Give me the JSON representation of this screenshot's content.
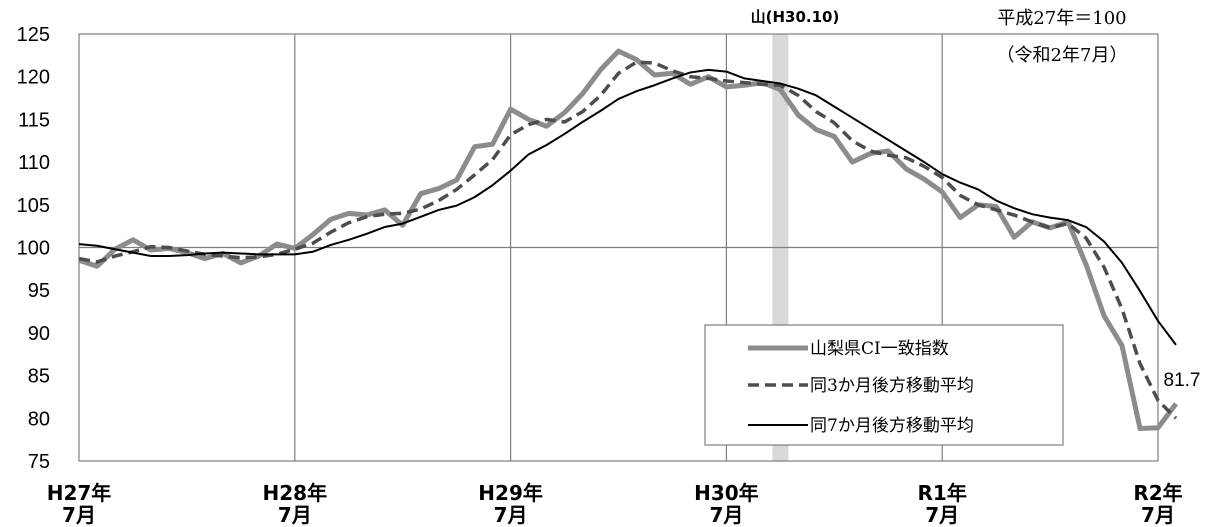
{
  "chart_data": {
    "type": "line",
    "title": "",
    "xlabel": "",
    "ylabel": "",
    "ylim": [
      75,
      125
    ],
    "yticks": [
      75,
      80,
      85,
      90,
      95,
      100,
      105,
      110,
      115,
      120,
      125
    ],
    "xticks": [
      {
        "month": 0,
        "line1": "H27年",
        "line2": "7月"
      },
      {
        "month": 12,
        "line1": "H28年",
        "line2": "7月"
      },
      {
        "month": 24,
        "line1": "H29年",
        "line2": "7月"
      },
      {
        "month": 36,
        "line1": "H30年",
        "line2": "7月"
      },
      {
        "month": 48,
        "line1": "R1年",
        "line2": "7月"
      },
      {
        "month": 60,
        "line1": "R2年",
        "line2": "7月"
      }
    ],
    "x_range": [
      0,
      60
    ],
    "grid": true,
    "peak_month": 39,
    "peak_label": "山(H30.10)",
    "base_note": "平成27年＝100",
    "date_note": "（令和2年7月）",
    "last_value_label": "81.7",
    "legend_position": "bottom-right",
    "series": [
      {
        "name": "山梨県CI一致指数",
        "color": "#8c8c8c",
        "style": "solid-thick",
        "values": [
          98.5,
          97.8,
          99.8,
          100.9,
          99.7,
          99.9,
          99.4,
          98.7,
          99.3,
          98.2,
          99.0,
          100.4,
          99.9,
          101.5,
          103.3,
          104.0,
          103.8,
          104.4,
          102.6,
          106.3,
          106.9,
          107.9,
          111.8,
          112.1,
          116.2,
          115.0,
          114.2,
          115.8,
          118.0,
          120.8,
          123.0,
          122.0,
          120.2,
          120.4,
          119.1,
          120.0,
          118.8,
          119.0,
          119.3,
          118.5,
          115.5,
          113.8,
          113.0,
          110.0,
          111.0,
          111.3,
          109.2,
          108.0,
          106.5,
          103.5,
          105.0,
          104.8,
          101.2,
          103.0,
          102.3,
          103.0,
          98.0,
          92.0,
          88.5,
          78.8,
          78.9,
          81.7
        ]
      },
      {
        "name": "同3か月後方移動平均",
        "color": "#4d4d4d",
        "style": "dashed",
        "values": [
          98.7,
          98.3,
          99.0,
          99.5,
          100.1,
          100.0,
          99.6,
          99.2,
          99.0,
          98.8,
          98.9,
          99.2,
          99.8,
          100.5,
          101.8,
          102.9,
          103.6,
          103.9,
          104.0,
          104.5,
          105.5,
          106.8,
          108.5,
          110.3,
          113.2,
          114.4,
          115.0,
          114.7,
          115.9,
          117.8,
          120.4,
          121.7,
          121.6,
          120.7,
          120.0,
          119.8,
          119.5,
          119.3,
          119.1,
          119.0,
          117.8,
          115.9,
          114.6,
          112.5,
          111.3,
          110.8,
          110.5,
          109.5,
          108.2,
          106.1,
          105.0,
          104.4,
          103.8,
          103.0,
          102.3,
          102.8,
          101.1,
          97.7,
          92.8,
          86.4,
          82.1,
          80.0
        ]
      },
      {
        "name": "同7か月後方移動平均",
        "color": "#000000",
        "style": "solid-thin",
        "values": [
          100.4,
          100.2,
          99.8,
          99.4,
          99.0,
          99.0,
          99.1,
          99.3,
          99.4,
          99.3,
          99.2,
          99.2,
          99.2,
          99.5,
          100.3,
          100.9,
          101.6,
          102.4,
          102.8,
          103.6,
          104.4,
          104.9,
          105.9,
          107.3,
          109.0,
          110.9,
          112.0,
          113.3,
          114.7,
          116.0,
          117.4,
          118.3,
          119.0,
          119.8,
          120.5,
          120.8,
          120.6,
          119.8,
          119.5,
          119.2,
          118.6,
          117.8,
          116.5,
          115.2,
          113.9,
          112.6,
          111.3,
          110.0,
          108.6,
          107.6,
          106.8,
          105.5,
          104.6,
          103.9,
          103.5,
          103.2,
          102.4,
          100.7,
          98.2,
          94.9,
          91.4,
          88.6
        ]
      }
    ]
  }
}
